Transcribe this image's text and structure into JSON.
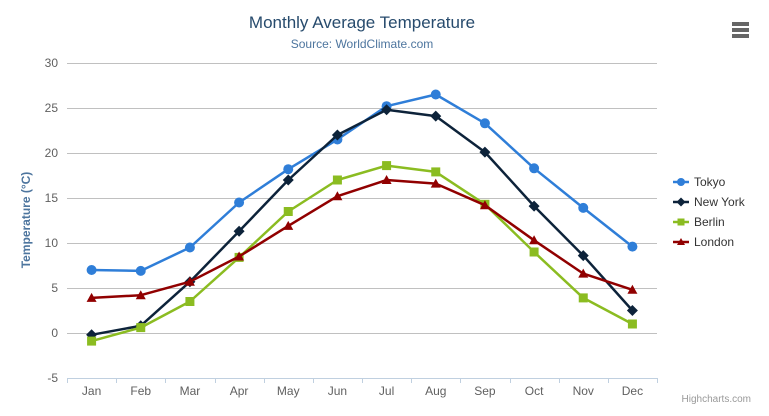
{
  "chart_data": {
    "type": "line",
    "title": "Monthly Average Temperature",
    "subtitle": "Source: WorldClimate.com",
    "categories": [
      "Jan",
      "Feb",
      "Mar",
      "Apr",
      "May",
      "Jun",
      "Jul",
      "Aug",
      "Sep",
      "Oct",
      "Nov",
      "Dec"
    ],
    "xlabel": "",
    "ylabel": "Temperature (°C)",
    "ylim": [
      -5,
      30
    ],
    "ytick_step": 5,
    "yticks": [
      -5,
      0,
      5,
      10,
      15,
      20,
      25,
      30
    ],
    "grid": true,
    "legend_position": "right",
    "series": [
      {
        "name": "Tokyo",
        "color": "#2f7ed8",
        "marker": "circle",
        "values": [
          7.0,
          6.9,
          9.5,
          14.5,
          18.2,
          21.5,
          25.2,
          26.5,
          23.3,
          18.3,
          13.9,
          9.6
        ]
      },
      {
        "name": "New York",
        "color": "#0d233a",
        "marker": "diamond",
        "values": [
          -0.2,
          0.8,
          5.7,
          11.3,
          17.0,
          22.0,
          24.8,
          24.1,
          20.1,
          14.1,
          8.6,
          2.5
        ]
      },
      {
        "name": "Berlin",
        "color": "#8bbc21",
        "marker": "square",
        "values": [
          -0.9,
          0.6,
          3.5,
          8.4,
          13.5,
          17.0,
          18.6,
          17.9,
          14.3,
          9.0,
          3.9,
          1.0
        ]
      },
      {
        "name": "London",
        "color": "#910000",
        "marker": "triangle",
        "values": [
          3.9,
          4.2,
          5.7,
          8.5,
          11.9,
          15.2,
          17.0,
          16.6,
          14.2,
          10.3,
          6.6,
          4.8
        ]
      }
    ]
  },
  "credits": {
    "label": "Highcharts.com"
  },
  "theme": {
    "background": "#ffffff",
    "title_color": "#274b6d",
    "subtitle_color": "#4d759e",
    "axis_title_color": "#4d759e",
    "axis_label_color": "#606060",
    "grid_color": "#c0c0c0",
    "axis_line_color": "#c0d0e0",
    "legend_text_color": "#333333",
    "credits_color": "#999999",
    "menu_icon_color": "#666666"
  }
}
